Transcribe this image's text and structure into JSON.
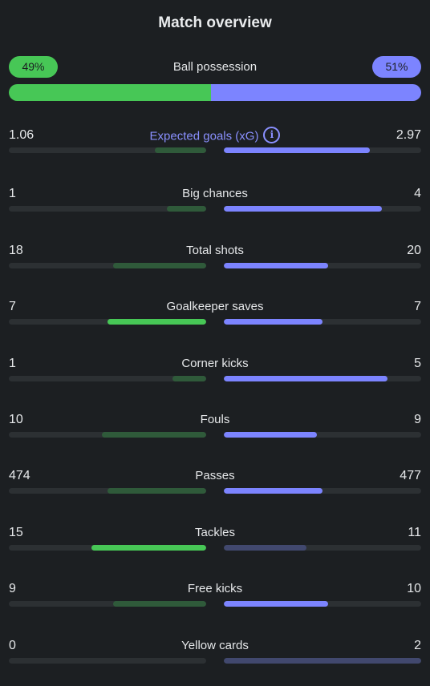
{
  "title": "Match overview",
  "possession": {
    "label": "Ball possession",
    "home": "49%",
    "away": "51%",
    "home_value": 49,
    "away_value": 51,
    "colors": {
      "home": "#47c756",
      "away": "#7c84ff"
    }
  },
  "stats": [
    {
      "label": "Expected goals (xG)",
      "home": "1.06",
      "away": "2.97",
      "home_fill": 0.26,
      "away_fill": 0.74,
      "home_style": "h-weak",
      "away_style": "a-strong",
      "accent": true,
      "info_icon": "info-icon"
    },
    {
      "label": "Big chances",
      "home": "1",
      "away": "4",
      "home_fill": 0.2,
      "away_fill": 0.8,
      "home_style": "h-weak",
      "away_style": "a-strong"
    },
    {
      "label": "Total shots",
      "home": "18",
      "away": "20",
      "home_fill": 0.47,
      "away_fill": 0.53,
      "home_style": "h-weak",
      "away_style": "a-strong"
    },
    {
      "label": "Goalkeeper saves",
      "home": "7",
      "away": "7",
      "home_fill": 0.5,
      "away_fill": 0.5,
      "home_style": "h-strong",
      "away_style": "a-strong"
    },
    {
      "label": "Corner kicks",
      "home": "1",
      "away": "5",
      "home_fill": 0.17,
      "away_fill": 0.83,
      "home_style": "h-weak",
      "away_style": "a-strong"
    },
    {
      "label": "Fouls",
      "home": "10",
      "away": "9",
      "home_fill": 0.53,
      "away_fill": 0.47,
      "home_style": "h-weak",
      "away_style": "a-strong"
    },
    {
      "label": "Passes",
      "home": "474",
      "away": "477",
      "home_fill": 0.5,
      "away_fill": 0.5,
      "home_style": "h-weak",
      "away_style": "a-strong"
    },
    {
      "label": "Tackles",
      "home": "15",
      "away": "11",
      "home_fill": 0.58,
      "away_fill": 0.42,
      "home_style": "h-strong",
      "away_style": "a-weak"
    },
    {
      "label": "Free kicks",
      "home": "9",
      "away": "10",
      "home_fill": 0.47,
      "away_fill": 0.53,
      "home_style": "h-weak",
      "away_style": "a-strong"
    },
    {
      "label": "Yellow cards",
      "home": "0",
      "away": "2",
      "home_fill": 0.0,
      "away_fill": 1.0,
      "home_style": "h-weak",
      "away_style": "a-weak"
    }
  ]
}
